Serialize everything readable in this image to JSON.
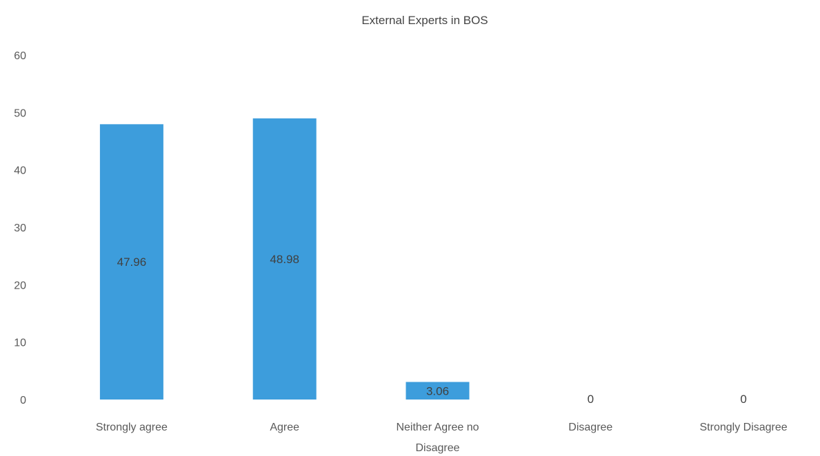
{
  "chart_data": {
    "type": "bar",
    "title": "External Experts in BOS",
    "categories": [
      "Strongly agree",
      "Agree",
      "Neither Agree no Disagree",
      "Disagree",
      "Strongly Disagree"
    ],
    "category_lines": [
      [
        "Strongly agree"
      ],
      [
        "Agree"
      ],
      [
        "Neither Agree no",
        "Disagree"
      ],
      [
        "Disagree"
      ],
      [
        "Strongly Disagree"
      ]
    ],
    "values": [
      47.96,
      48.98,
      3.06,
      0,
      0
    ],
    "data_labels": [
      "47.96",
      "48.98",
      "3.06",
      "0",
      "0"
    ],
    "xlabel": "",
    "ylabel": "",
    "ylim": [
      0,
      60
    ],
    "yticks": [
      0,
      10,
      20,
      30,
      40,
      50,
      60
    ],
    "grid": false,
    "legend": "none",
    "bar_color": "#3d9ddc"
  }
}
